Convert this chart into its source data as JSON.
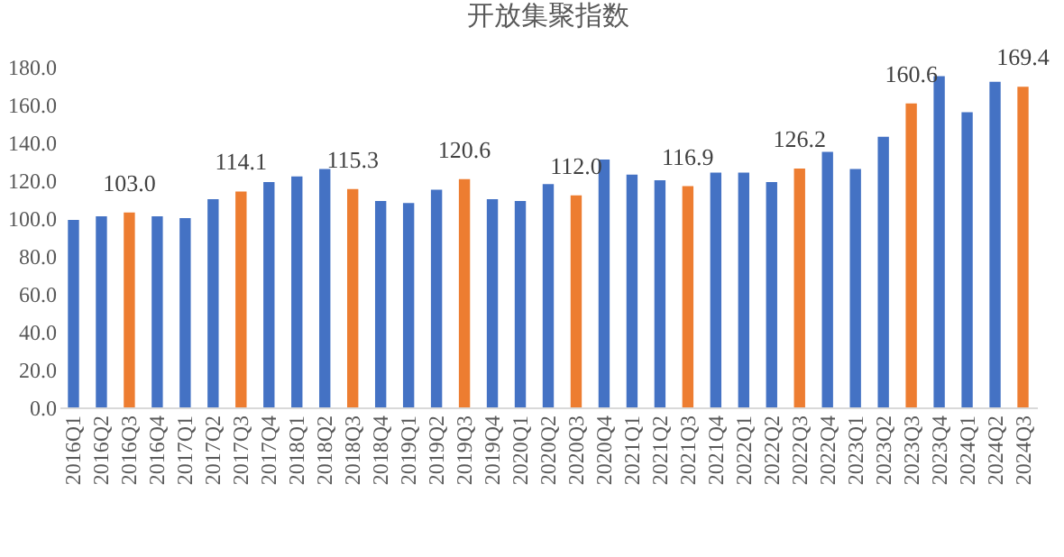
{
  "chart_data": {
    "type": "bar",
    "title": "开放集聚指数",
    "categories": [
      "2016Q1",
      "2016Q2",
      "2016Q3",
      "2016Q4",
      "2017Q1",
      "2017Q2",
      "2017Q3",
      "2017Q4",
      "2018Q1",
      "2018Q2",
      "2018Q3",
      "2018Q4",
      "2019Q1",
      "2019Q2",
      "2019Q3",
      "2019Q4",
      "2020Q1",
      "2020Q2",
      "2020Q3",
      "2020Q4",
      "2021Q1",
      "2021Q2",
      "2021Q3",
      "2021Q4",
      "2022Q1",
      "2022Q2",
      "2022Q3",
      "2022Q4",
      "2023Q1",
      "2023Q2",
      "2023Q3",
      "2023Q4",
      "2024Q1",
      "2024Q2",
      "2024Q3"
    ],
    "values": [
      99,
      101,
      103.0,
      101,
      100,
      110,
      114.1,
      119,
      122,
      126,
      115.3,
      109,
      108,
      115,
      120.6,
      110,
      109,
      118,
      112.0,
      131,
      123,
      120,
      116.9,
      124,
      124,
      119,
      126.2,
      135,
      126,
      143,
      160.6,
      175,
      156,
      172,
      169.4
    ],
    "colors": [
      "#4472c4",
      "#4472c4",
      "#ed7d31",
      "#4472c4",
      "#4472c4",
      "#4472c4",
      "#ed7d31",
      "#4472c4",
      "#4472c4",
      "#4472c4",
      "#ed7d31",
      "#4472c4",
      "#4472c4",
      "#4472c4",
      "#ed7d31",
      "#4472c4",
      "#4472c4",
      "#4472c4",
      "#ed7d31",
      "#4472c4",
      "#4472c4",
      "#4472c4",
      "#ed7d31",
      "#4472c4",
      "#4472c4",
      "#4472c4",
      "#ed7d31",
      "#4472c4",
      "#4472c4",
      "#4472c4",
      "#ed7d31",
      "#4472c4",
      "#4472c4",
      "#4472c4",
      "#ed7d31"
    ],
    "value_labels": [
      null,
      null,
      "103.0",
      null,
      null,
      null,
      "114.1",
      null,
      null,
      null,
      "115.3",
      null,
      null,
      null,
      "120.6",
      null,
      null,
      null,
      "112.0",
      null,
      null,
      null,
      "116.9",
      null,
      null,
      null,
      "126.2",
      null,
      null,
      null,
      "160.6",
      null,
      null,
      null,
      "169.4"
    ],
    "ylim": [
      0,
      180
    ],
    "yticks": [
      {
        "value": 0,
        "label": "0.0"
      },
      {
        "value": 20,
        "label": "20.0"
      },
      {
        "value": 40,
        "label": "40.0"
      },
      {
        "value": 60,
        "label": "60.0"
      },
      {
        "value": 80,
        "label": "80.0"
      },
      {
        "value": 100,
        "label": "100.0"
      },
      {
        "value": 120,
        "label": "120.0"
      },
      {
        "value": 140,
        "label": "140.0"
      },
      {
        "value": 160,
        "label": "160.0"
      },
      {
        "value": 180,
        "label": "180.0"
      }
    ],
    "grid": false
  }
}
